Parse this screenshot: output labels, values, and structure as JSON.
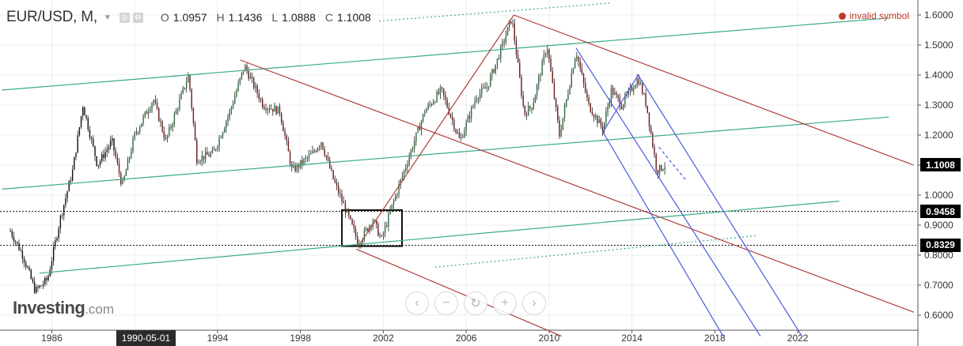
{
  "header": {
    "symbol": "EUR/USD, M,",
    "caret_icon": "chevron-down-icon",
    "ohlc": [
      {
        "key": "O",
        "value": "1.0957"
      },
      {
        "key": "H",
        "value": "1.1436"
      },
      {
        "key": "L",
        "value": "1.0888"
      },
      {
        "key": "C",
        "value": "1.1008"
      }
    ]
  },
  "status": {
    "text": "invalid symbol",
    "color": "#c0392b"
  },
  "logo": {
    "brand": "Investing",
    "domain": ".com"
  },
  "zoom_controls": [
    {
      "name": "scroll-left",
      "icon": "chevron-left-icon",
      "glyph": "‹"
    },
    {
      "name": "zoom-out",
      "icon": "minus-icon",
      "glyph": "−"
    },
    {
      "name": "reset",
      "icon": "reset-icon",
      "glyph": "↻"
    },
    {
      "name": "zoom-in",
      "icon": "plus-icon",
      "glyph": "+"
    },
    {
      "name": "scroll-right",
      "icon": "chevron-right-icon",
      "glyph": "›"
    }
  ],
  "crosshair_date": "1990-05-01",
  "chart_data": {
    "type": "candlestick",
    "symbol": "EUR/USD",
    "timeframe": "M",
    "x_ticks": [
      "1986",
      "1990",
      "1994",
      "1998",
      "2002",
      "2006",
      "2010",
      "2014",
      "2018",
      "2022"
    ],
    "x_range": [
      1983.5,
      2027.8
    ],
    "y_ticks": [
      "0.6000",
      "0.7000",
      "0.8000",
      "0.9000",
      "1.0000",
      "1.1000",
      "1.2000",
      "1.3000",
      "1.4000",
      "1.5000",
      "1.6000"
    ],
    "y_range": [
      0.55,
      1.65
    ],
    "price_labels": [
      {
        "value": "1.1008",
        "y": 1.1008
      },
      {
        "value": "0.9458",
        "y": 0.9458
      },
      {
        "value": "0.8329",
        "y": 0.8329
      }
    ],
    "horizontal_lines": [
      0.9458,
      0.8329
    ],
    "price_path": [
      [
        1984.0,
        0.88
      ],
      [
        1984.6,
        0.8
      ],
      [
        1985.2,
        0.68
      ],
      [
        1985.8,
        0.72
      ],
      [
        1986.4,
        0.92
      ],
      [
        1987.0,
        1.08
      ],
      [
        1987.5,
        1.3
      ],
      [
        1988.2,
        1.1
      ],
      [
        1988.9,
        1.18
      ],
      [
        1989.4,
        1.03
      ],
      [
        1990.0,
        1.2
      ],
      [
        1990.9,
        1.32
      ],
      [
        1991.5,
        1.18
      ],
      [
        1992.0,
        1.28
      ],
      [
        1992.6,
        1.4
      ],
      [
        1993.0,
        1.12
      ],
      [
        1993.8,
        1.14
      ],
      [
        1994.6,
        1.28
      ],
      [
        1995.3,
        1.43
      ],
      [
        1996.2,
        1.3
      ],
      [
        1997.0,
        1.28
      ],
      [
        1997.6,
        1.08
      ],
      [
        1998.6,
        1.14
      ],
      [
        1999.0,
        1.18
      ],
      [
        1999.6,
        1.05
      ],
      [
        2000.3,
        0.93
      ],
      [
        2000.8,
        0.84
      ],
      [
        2001.5,
        0.92
      ],
      [
        2001.9,
        0.85
      ],
      [
        2002.5,
        0.98
      ],
      [
        2003.4,
        1.16
      ],
      [
        2004.0,
        1.28
      ],
      [
        2004.8,
        1.35
      ],
      [
        2005.7,
        1.18
      ],
      [
        2006.5,
        1.33
      ],
      [
        2007.0,
        1.36
      ],
      [
        2007.5,
        1.45
      ],
      [
        2008.2,
        1.59
      ],
      [
        2008.8,
        1.27
      ],
      [
        2009.2,
        1.3
      ],
      [
        2009.9,
        1.5
      ],
      [
        2010.5,
        1.2
      ],
      [
        2011.3,
        1.48
      ],
      [
        2011.9,
        1.3
      ],
      [
        2012.6,
        1.22
      ],
      [
        2013.0,
        1.35
      ],
      [
        2013.5,
        1.3
      ],
      [
        2014.3,
        1.39
      ],
      [
        2014.7,
        1.3
      ],
      [
        2015.2,
        1.08
      ],
      [
        2015.6,
        1.1
      ]
    ],
    "trend_lines": [
      {
        "color": "#3aaa88",
        "style": "solid",
        "points": [
          [
            1983.6,
            1.35
          ],
          [
            2026.4,
            1.59
          ]
        ]
      },
      {
        "color": "#3aaa88",
        "style": "solid",
        "points": [
          [
            1983.6,
            1.02
          ],
          [
            2026.4,
            1.26
          ]
        ]
      },
      {
        "color": "#3aaa88",
        "style": "solid",
        "points": [
          [
            1985.4,
            0.74
          ],
          [
            2024.0,
            0.98
          ]
        ]
      },
      {
        "color": "#3aaa88",
        "style": "dotted",
        "points": [
          [
            2001.8,
            1.58
          ],
          [
            2013.0,
            1.64
          ]
        ]
      },
      {
        "color": "#3aaa88",
        "style": "dotted",
        "points": [
          [
            2004.5,
            0.76
          ],
          [
            2020.0,
            0.865
          ]
        ]
      },
      {
        "color": "#b03a3a",
        "style": "solid",
        "points": [
          [
            1995.1,
            1.45
          ],
          [
            2027.6,
            0.61
          ]
        ]
      },
      {
        "color": "#b03a3a",
        "style": "solid",
        "points": [
          [
            2008.3,
            1.6
          ],
          [
            2027.6,
            1.1
          ]
        ]
      },
      {
        "color": "#b03a3a",
        "style": "solid",
        "points": [
          [
            2000.7,
            0.82
          ],
          [
            2010.6,
            0.53
          ]
        ]
      },
      {
        "color": "#b03a3a",
        "style": "solid",
        "points": [
          [
            2000.8,
            0.83
          ],
          [
            2008.3,
            1.6
          ]
        ]
      },
      {
        "color": "#4a5adf",
        "style": "solid",
        "points": [
          [
            2011.3,
            1.49
          ],
          [
            2020.2,
            0.53
          ]
        ]
      },
      {
        "color": "#4a5adf",
        "style": "solid",
        "points": [
          [
            2012.6,
            1.21
          ],
          [
            2018.4,
            0.53
          ]
        ]
      },
      {
        "color": "#4a5adf",
        "style": "solid",
        "points": [
          [
            2014.3,
            1.4
          ],
          [
            2022.2,
            0.53
          ]
        ]
      },
      {
        "color": "#4a5adf",
        "style": "solid",
        "points": [
          [
            2012.6,
            1.21
          ],
          [
            2014.3,
            1.4
          ]
        ]
      },
      {
        "color": "#4a5adf",
        "style": "dashed",
        "points": [
          [
            2015.3,
            1.16
          ],
          [
            2016.6,
            1.05
          ]
        ]
      }
    ],
    "rectangle": {
      "x": [
        2000.0,
        2002.9
      ],
      "y": [
        0.83,
        0.95
      ]
    }
  }
}
